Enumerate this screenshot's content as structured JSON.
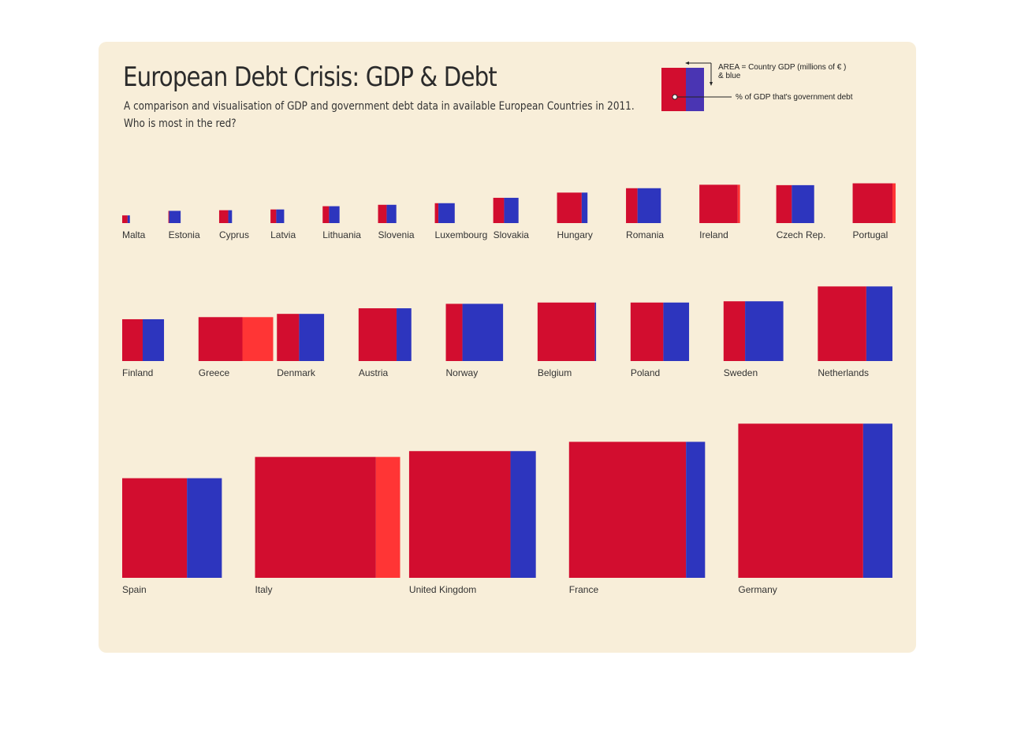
{
  "title": "European Debt Crisis: GDP & Debt",
  "subtitle_line1": "A comparison and visualisation of GDP and government debt data in available European Countries in 2011.",
  "subtitle_line2": "Who is most in the red?",
  "legend": {
    "area_line1": "AREA = Country GDP (millions of  € )",
    "area_line2": "& blue",
    "pct_label": "% of GDP that's government debt"
  },
  "colors": {
    "debt": "#d20d2f",
    "over_gdp": "#ff3535",
    "remaining": "#2d35be",
    "background": "#f8eed9"
  },
  "chart_data": {
    "type": "proportional-area squares",
    "rows": [
      [
        {
          "name": "Malta",
          "gdp": 6400,
          "debt_pct": 70
        },
        {
          "name": "Estonia",
          "gdp": 16200,
          "debt_pct": 6
        },
        {
          "name": "Cyprus",
          "gdp": 17900,
          "debt_pct": 71
        },
        {
          "name": "Latvia",
          "gdp": 20100,
          "debt_pct": 42
        },
        {
          "name": "Lithuania",
          "gdp": 30800,
          "debt_pct": 38
        },
        {
          "name": "Slovenia",
          "gdp": 36200,
          "debt_pct": 47
        },
        {
          "name": "Luxembourg",
          "gdp": 42800,
          "debt_pct": 18
        },
        {
          "name": "Slovakia",
          "gdp": 69100,
          "debt_pct": 43
        },
        {
          "name": "Hungary",
          "gdp": 100500,
          "debt_pct": 81
        },
        {
          "name": "Romania",
          "gdp": 131500,
          "debt_pct": 33
        },
        {
          "name": "Ireland",
          "gdp": 159000,
          "debt_pct": 106
        },
        {
          "name": "Czech Rep.",
          "gdp": 155500,
          "debt_pct": 41
        },
        {
          "name": "Portugal",
          "gdp": 171000,
          "debt_pct": 108
        }
      ],
      [
        {
          "name": "Finland",
          "gdp": 189000,
          "debt_pct": 49
        },
        {
          "name": "Greece",
          "gdp": 208500,
          "debt_pct": 170
        },
        {
          "name": "Denmark",
          "gdp": 240500,
          "debt_pct": 47
        },
        {
          "name": "Austria",
          "gdp": 301000,
          "debt_pct": 72
        },
        {
          "name": "Norway",
          "gdp": 354000,
          "debt_pct": 29
        },
        {
          "name": "Belgium",
          "gdp": 370000,
          "debt_pct": 98
        },
        {
          "name": "Poland",
          "gdp": 370000,
          "debt_pct": 56
        },
        {
          "name": "Sweden",
          "gdp": 386000,
          "debt_pct": 36
        },
        {
          "name": "Netherlands",
          "gdp": 602000,
          "debt_pct": 65
        }
      ],
      [
        {
          "name": "Spain",
          "gdp": 1073000,
          "debt_pct": 65
        },
        {
          "name": "Italy",
          "gdp": 1580000,
          "debt_pct": 120
        },
        {
          "name": "United Kingdom",
          "gdp": 1736000,
          "debt_pct": 80
        },
        {
          "name": "France",
          "gdp": 2000000,
          "debt_pct": 86
        },
        {
          "name": "Germany",
          "gdp": 2570000,
          "debt_pct": 81
        }
      ]
    ]
  }
}
